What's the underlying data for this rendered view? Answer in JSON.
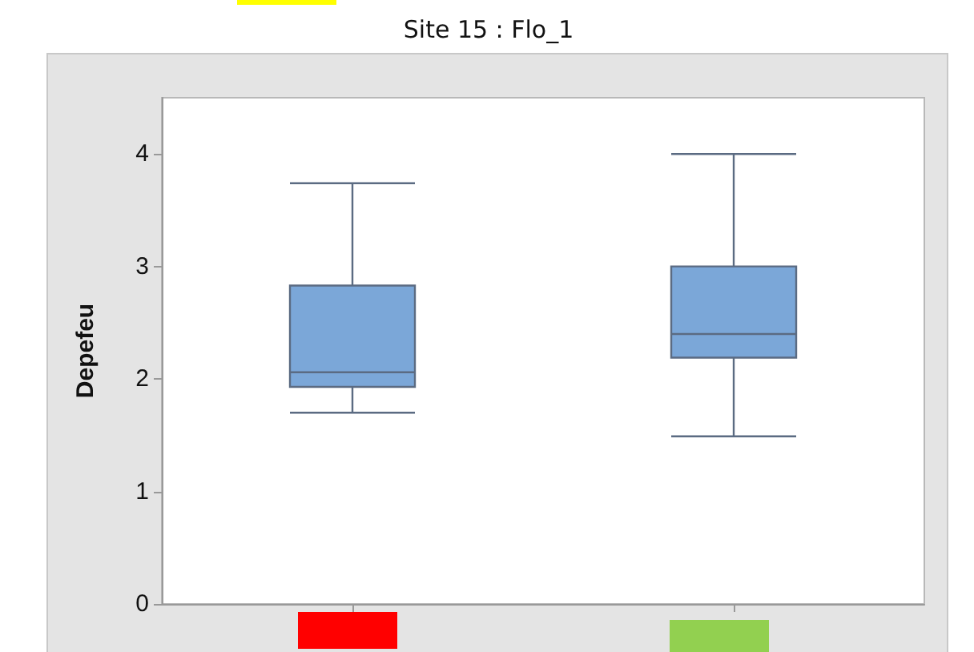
{
  "chart_data": {
    "type": "box",
    "title": "Site 15 : Flo_1",
    "ylabel": "Depefeu",
    "categories": [
      null,
      null
    ],
    "series": [
      {
        "color": "#7ba7d8",
        "boxes": [
          {
            "low": 1.7,
            "q1": 1.93,
            "median": 2.06,
            "q3": 2.83,
            "high": 3.74
          },
          {
            "low": 1.49,
            "q1": 2.19,
            "median": 2.4,
            "q3": 3.0,
            "high": 4.0
          }
        ]
      }
    ],
    "ylim": [
      0,
      4.5
    ],
    "yticks": [
      0,
      1,
      2,
      3,
      4
    ],
    "grid": false
  }
}
